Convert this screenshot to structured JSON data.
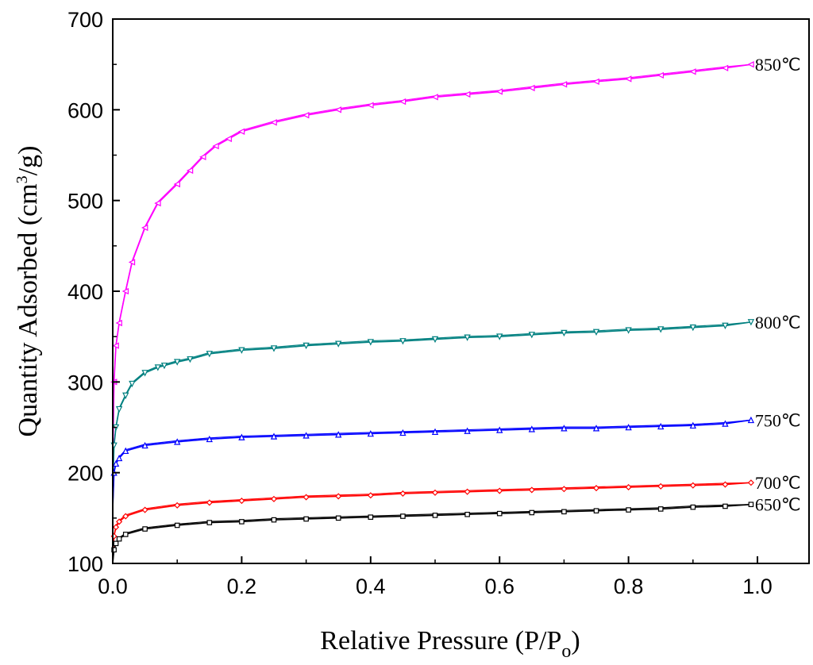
{
  "chart_data": {
    "type": "line",
    "title": "",
    "xlabel": {
      "main": "Relative Pressure (P/P",
      "sub": "o",
      "end": ")"
    },
    "ylabel": {
      "main": "Quantity Adsorbed (cm",
      "sup": "3",
      "end": "/g)"
    },
    "xlim": [
      0.0,
      1.08
    ],
    "ylim": [
      100,
      700
    ],
    "xticks": [
      "0.0",
      "0.2",
      "0.4",
      "0.6",
      "0.8",
      "1.0"
    ],
    "yticks": [
      "100",
      "200",
      "300",
      "400",
      "500",
      "600",
      "700"
    ],
    "series": [
      {
        "name": "850℃",
        "color": "#ff00ff",
        "marker": "triangle-left",
        "x": [
          0.0,
          0.002,
          0.005,
          0.01,
          0.02,
          0.03,
          0.05,
          0.07,
          0.1,
          0.12,
          0.14,
          0.16,
          0.18,
          0.2,
          0.25,
          0.3,
          0.35,
          0.4,
          0.45,
          0.5,
          0.55,
          0.6,
          0.65,
          0.7,
          0.75,
          0.8,
          0.85,
          0.9,
          0.95,
          0.99
        ],
        "y": [
          200,
          300,
          340,
          365,
          400,
          432,
          470,
          497,
          518,
          533,
          548,
          560,
          568,
          576,
          586,
          594,
          600,
          605,
          609,
          614,
          617,
          620,
          624,
          628,
          631,
          634,
          638,
          642,
          646,
          650
        ]
      },
      {
        "name": "800℃",
        "color": "#008080",
        "marker": "triangle-down",
        "x": [
          0.0,
          0.002,
          0.005,
          0.01,
          0.02,
          0.03,
          0.05,
          0.07,
          0.08,
          0.1,
          0.12,
          0.15,
          0.2,
          0.25,
          0.3,
          0.35,
          0.4,
          0.45,
          0.5,
          0.55,
          0.6,
          0.65,
          0.7,
          0.75,
          0.8,
          0.85,
          0.9,
          0.95,
          0.99
        ],
        "y": [
          180,
          230,
          250,
          270,
          285,
          298,
          310,
          316,
          318,
          322,
          325,
          331,
          335,
          337,
          340,
          342,
          344,
          345,
          347,
          349,
          350,
          352,
          354,
          355,
          357,
          358,
          360,
          362,
          366
        ]
      },
      {
        "name": "750℃",
        "color": "#0000ff",
        "marker": "triangle-up",
        "x": [
          0.0,
          0.002,
          0.005,
          0.01,
          0.02,
          0.05,
          0.1,
          0.15,
          0.2,
          0.25,
          0.3,
          0.35,
          0.4,
          0.45,
          0.5,
          0.55,
          0.6,
          0.65,
          0.7,
          0.75,
          0.8,
          0.85,
          0.9,
          0.95,
          0.99
        ],
        "y": [
          160,
          200,
          210,
          216,
          224,
          230,
          234,
          237,
          239,
          240,
          241,
          242,
          243,
          244,
          245,
          246,
          247,
          248,
          249,
          249,
          250,
          251,
          252,
          254,
          258
        ]
      },
      {
        "name": "700℃",
        "color": "#ff0000",
        "marker": "diamond",
        "x": [
          0.0,
          0.002,
          0.005,
          0.01,
          0.02,
          0.05,
          0.1,
          0.15,
          0.2,
          0.25,
          0.3,
          0.35,
          0.4,
          0.45,
          0.5,
          0.55,
          0.6,
          0.65,
          0.7,
          0.75,
          0.8,
          0.85,
          0.9,
          0.95,
          0.99
        ],
        "y": [
          110,
          130,
          140,
          146,
          152,
          159,
          164,
          167,
          169,
          171,
          173,
          174,
          175,
          177,
          178,
          179,
          180,
          181,
          182,
          183,
          184,
          185,
          186,
          187,
          189
        ]
      },
      {
        "name": "650℃",
        "color": "#000000",
        "marker": "square",
        "x": [
          0.0,
          0.002,
          0.005,
          0.01,
          0.02,
          0.05,
          0.1,
          0.15,
          0.2,
          0.25,
          0.3,
          0.35,
          0.4,
          0.45,
          0.5,
          0.55,
          0.6,
          0.65,
          0.7,
          0.75,
          0.8,
          0.85,
          0.9,
          0.95,
          0.99
        ],
        "y": [
          100,
          115,
          122,
          127,
          132,
          138,
          142,
          145,
          146,
          148,
          149,
          150,
          151,
          152,
          153,
          154,
          155,
          156,
          157,
          158,
          159,
          160,
          162,
          163,
          165
        ]
      }
    ]
  }
}
